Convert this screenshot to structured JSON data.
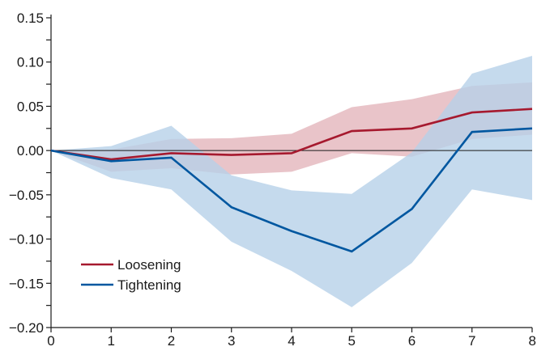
{
  "chart_data": {
    "type": "line",
    "title": "",
    "xlabel": "",
    "ylabel": "",
    "x": [
      0,
      1,
      2,
      3,
      4,
      5,
      6,
      7,
      8
    ],
    "xlim": [
      0,
      8
    ],
    "ylim": [
      -0.2,
      0.15
    ],
    "x_ticks": [
      "0",
      "1",
      "2",
      "3",
      "4",
      "5",
      "6",
      "7",
      "8"
    ],
    "y_ticks": [
      0.15,
      0.1,
      0.05,
      0.0,
      -0.05,
      -0.1,
      -0.15,
      -0.2
    ],
    "y_tick_labels": [
      "0.15",
      "0.10",
      "0.05",
      "0.00",
      "−0.05",
      "−0.10",
      "−0.15",
      "−0.20"
    ],
    "grid": false,
    "zero_line": true,
    "legend": {
      "placement": "bottom-left"
    },
    "series": [
      {
        "name": "Loosening",
        "color": "#a6192e",
        "band_color": "#e3b5bc",
        "values": [
          0.0,
          -0.01,
          -0.003,
          -0.005,
          -0.003,
          0.022,
          0.025,
          0.043,
          0.047
        ],
        "lower": [
          0.0,
          -0.024,
          -0.02,
          -0.027,
          -0.024,
          -0.003,
          -0.007,
          0.013,
          0.018
        ],
        "upper": [
          0.0,
          0.001,
          0.013,
          0.014,
          0.019,
          0.049,
          0.058,
          0.073,
          0.077
        ]
      },
      {
        "name": "Tightening",
        "color": "#0057a0",
        "band_color": "#b7d1e8",
        "values": [
          0.0,
          -0.012,
          -0.008,
          -0.064,
          -0.091,
          -0.114,
          -0.066,
          0.021,
          0.025
        ],
        "lower": [
          0.0,
          -0.031,
          -0.044,
          -0.103,
          -0.136,
          -0.177,
          -0.127,
          -0.044,
          -0.056
        ],
        "upper": [
          0.0,
          0.005,
          0.028,
          -0.028,
          -0.045,
          -0.049,
          -0.002,
          0.087,
          0.107
        ]
      }
    ]
  }
}
